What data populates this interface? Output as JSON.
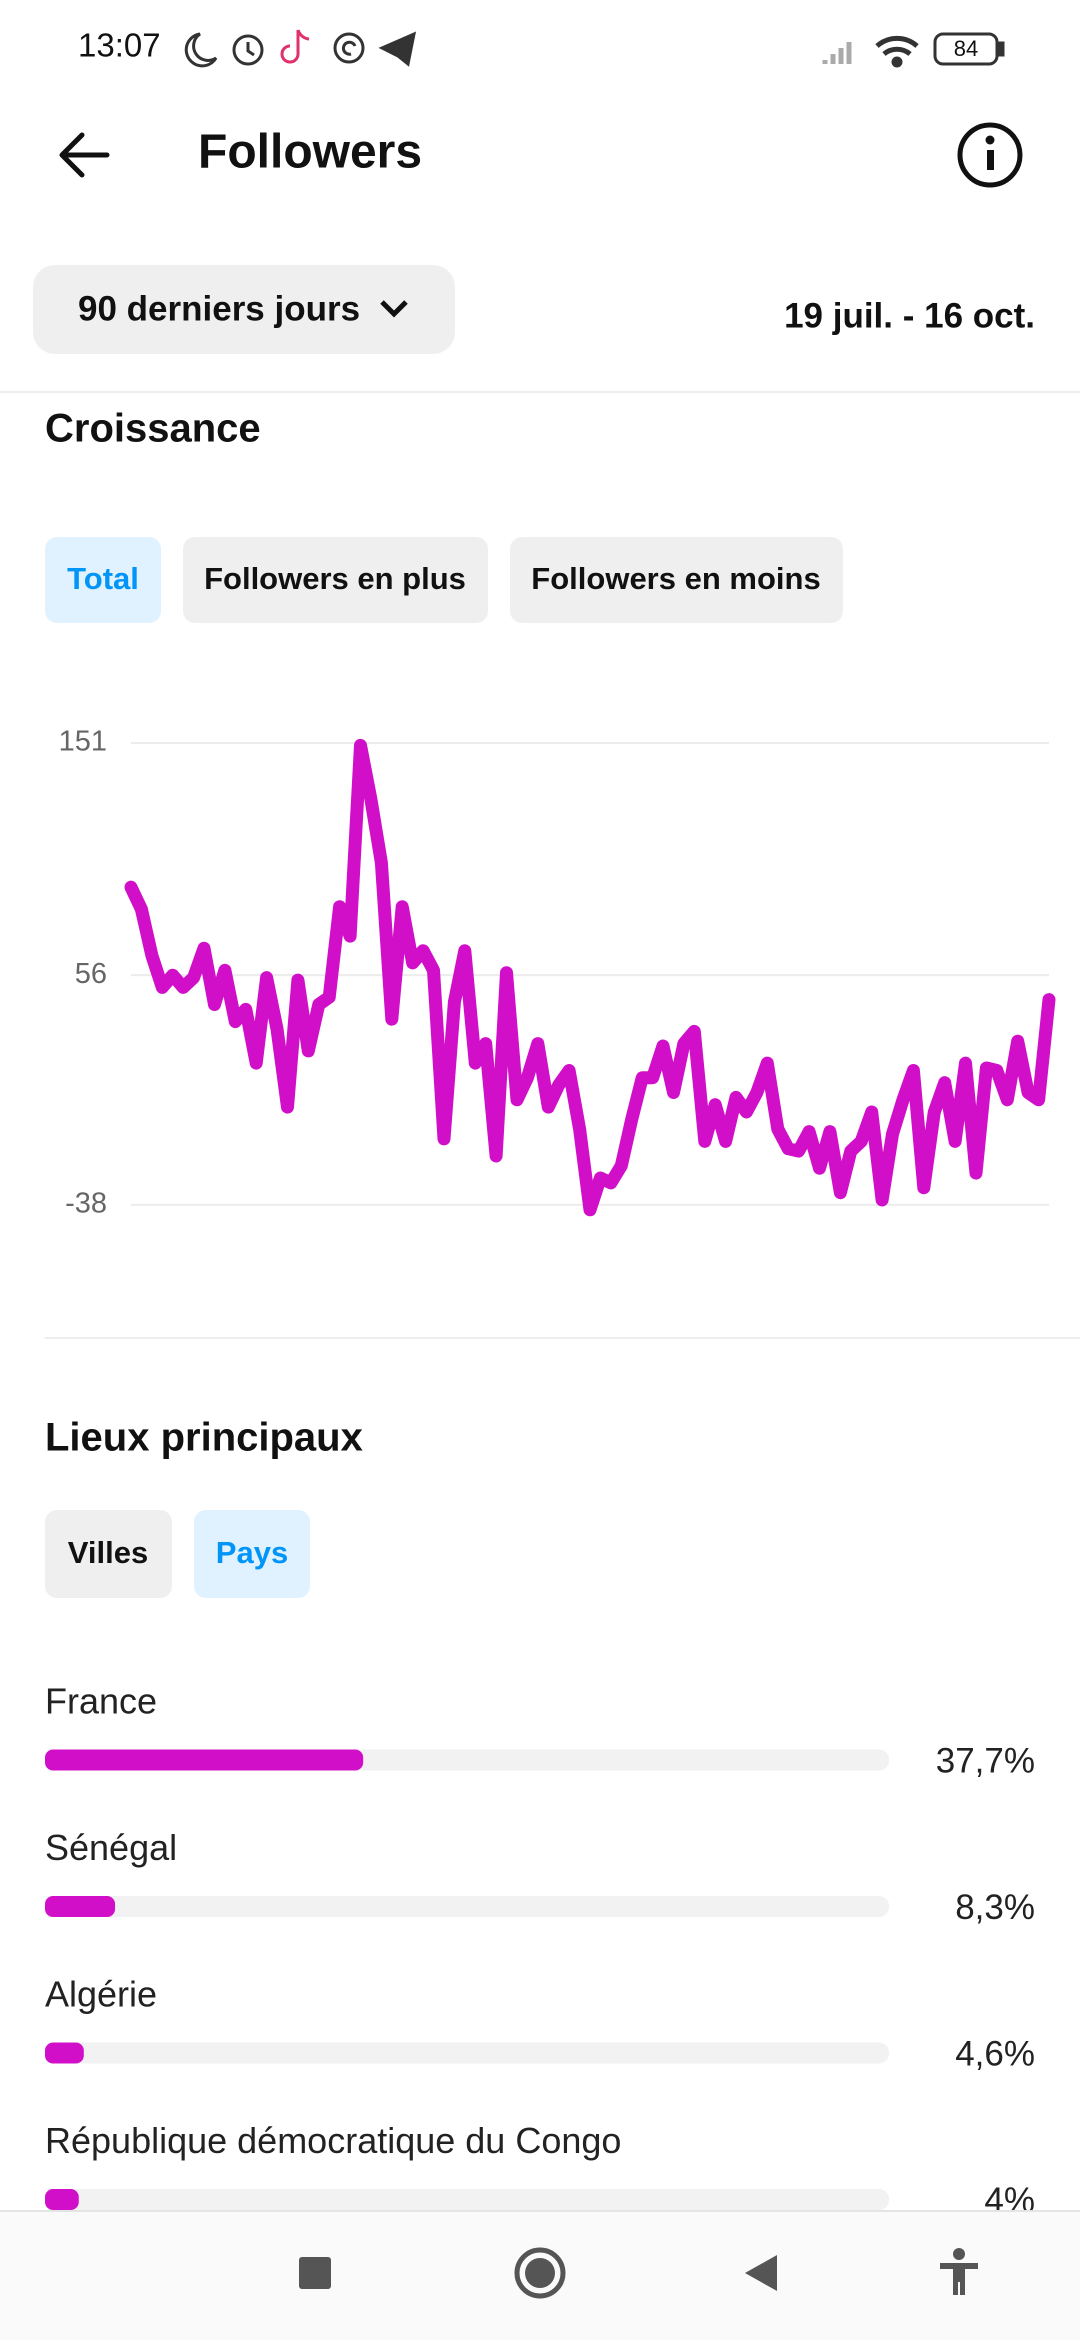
{
  "status_bar": {
    "time": "13:07",
    "battery": "84"
  },
  "header": {
    "title": "Followers"
  },
  "filter": {
    "period": "90 derniers jours",
    "date_range": "19 juil. - 16 oct."
  },
  "growth_tabs": [
    "Total",
    "Followers en plus",
    "Followers en moins"
  ],
  "location_tabs": [
    "Villes",
    "Pays"
  ],
  "chart_data": [
    {
      "type": "line",
      "title": "Croissance",
      "color": "#d20fc8",
      "values": [
        92,
        83,
        64,
        51,
        56,
        51,
        55,
        67,
        44,
        58,
        37,
        42,
        20,
        55,
        34,
        2,
        54,
        25,
        44,
        47,
        84,
        72,
        150,
        128,
        102,
        38,
        84,
        61,
        66,
        58,
        -11,
        45,
        66,
        20,
        28,
        -18,
        57,
        5,
        14,
        28,
        2,
        11,
        17,
        -7,
        -40,
        -27,
        -29,
        -22,
        -3,
        14,
        14,
        27,
        8,
        28,
        33,
        -12,
        3,
        -12,
        6,
        0,
        8,
        20,
        -7,
        -15,
        -16,
        -8,
        -23,
        -8,
        -33,
        -16,
        -12,
        0,
        -36,
        -9,
        5,
        17,
        -31,
        0,
        12,
        -12,
        20,
        -25,
        18,
        17,
        5,
        29,
        8,
        5,
        46
      ],
      "ylim": [
        -45,
        151
      ],
      "yticks": [
        -38,
        56,
        151
      ],
      "grid": true
    },
    {
      "type": "bar",
      "orientation": "horizontal",
      "title": "Lieux principaux",
      "color": "#d20fc8",
      "categories": [
        "France",
        "Sénégal",
        "Algérie",
        "République démocratique du Congo"
      ],
      "values": [
        37.7,
        8.3,
        4.6,
        4
      ],
      "value_labels": [
        "37,7%",
        "8,3%",
        "4,6%",
        "4%"
      ],
      "xlim": [
        0,
        100
      ]
    }
  ]
}
